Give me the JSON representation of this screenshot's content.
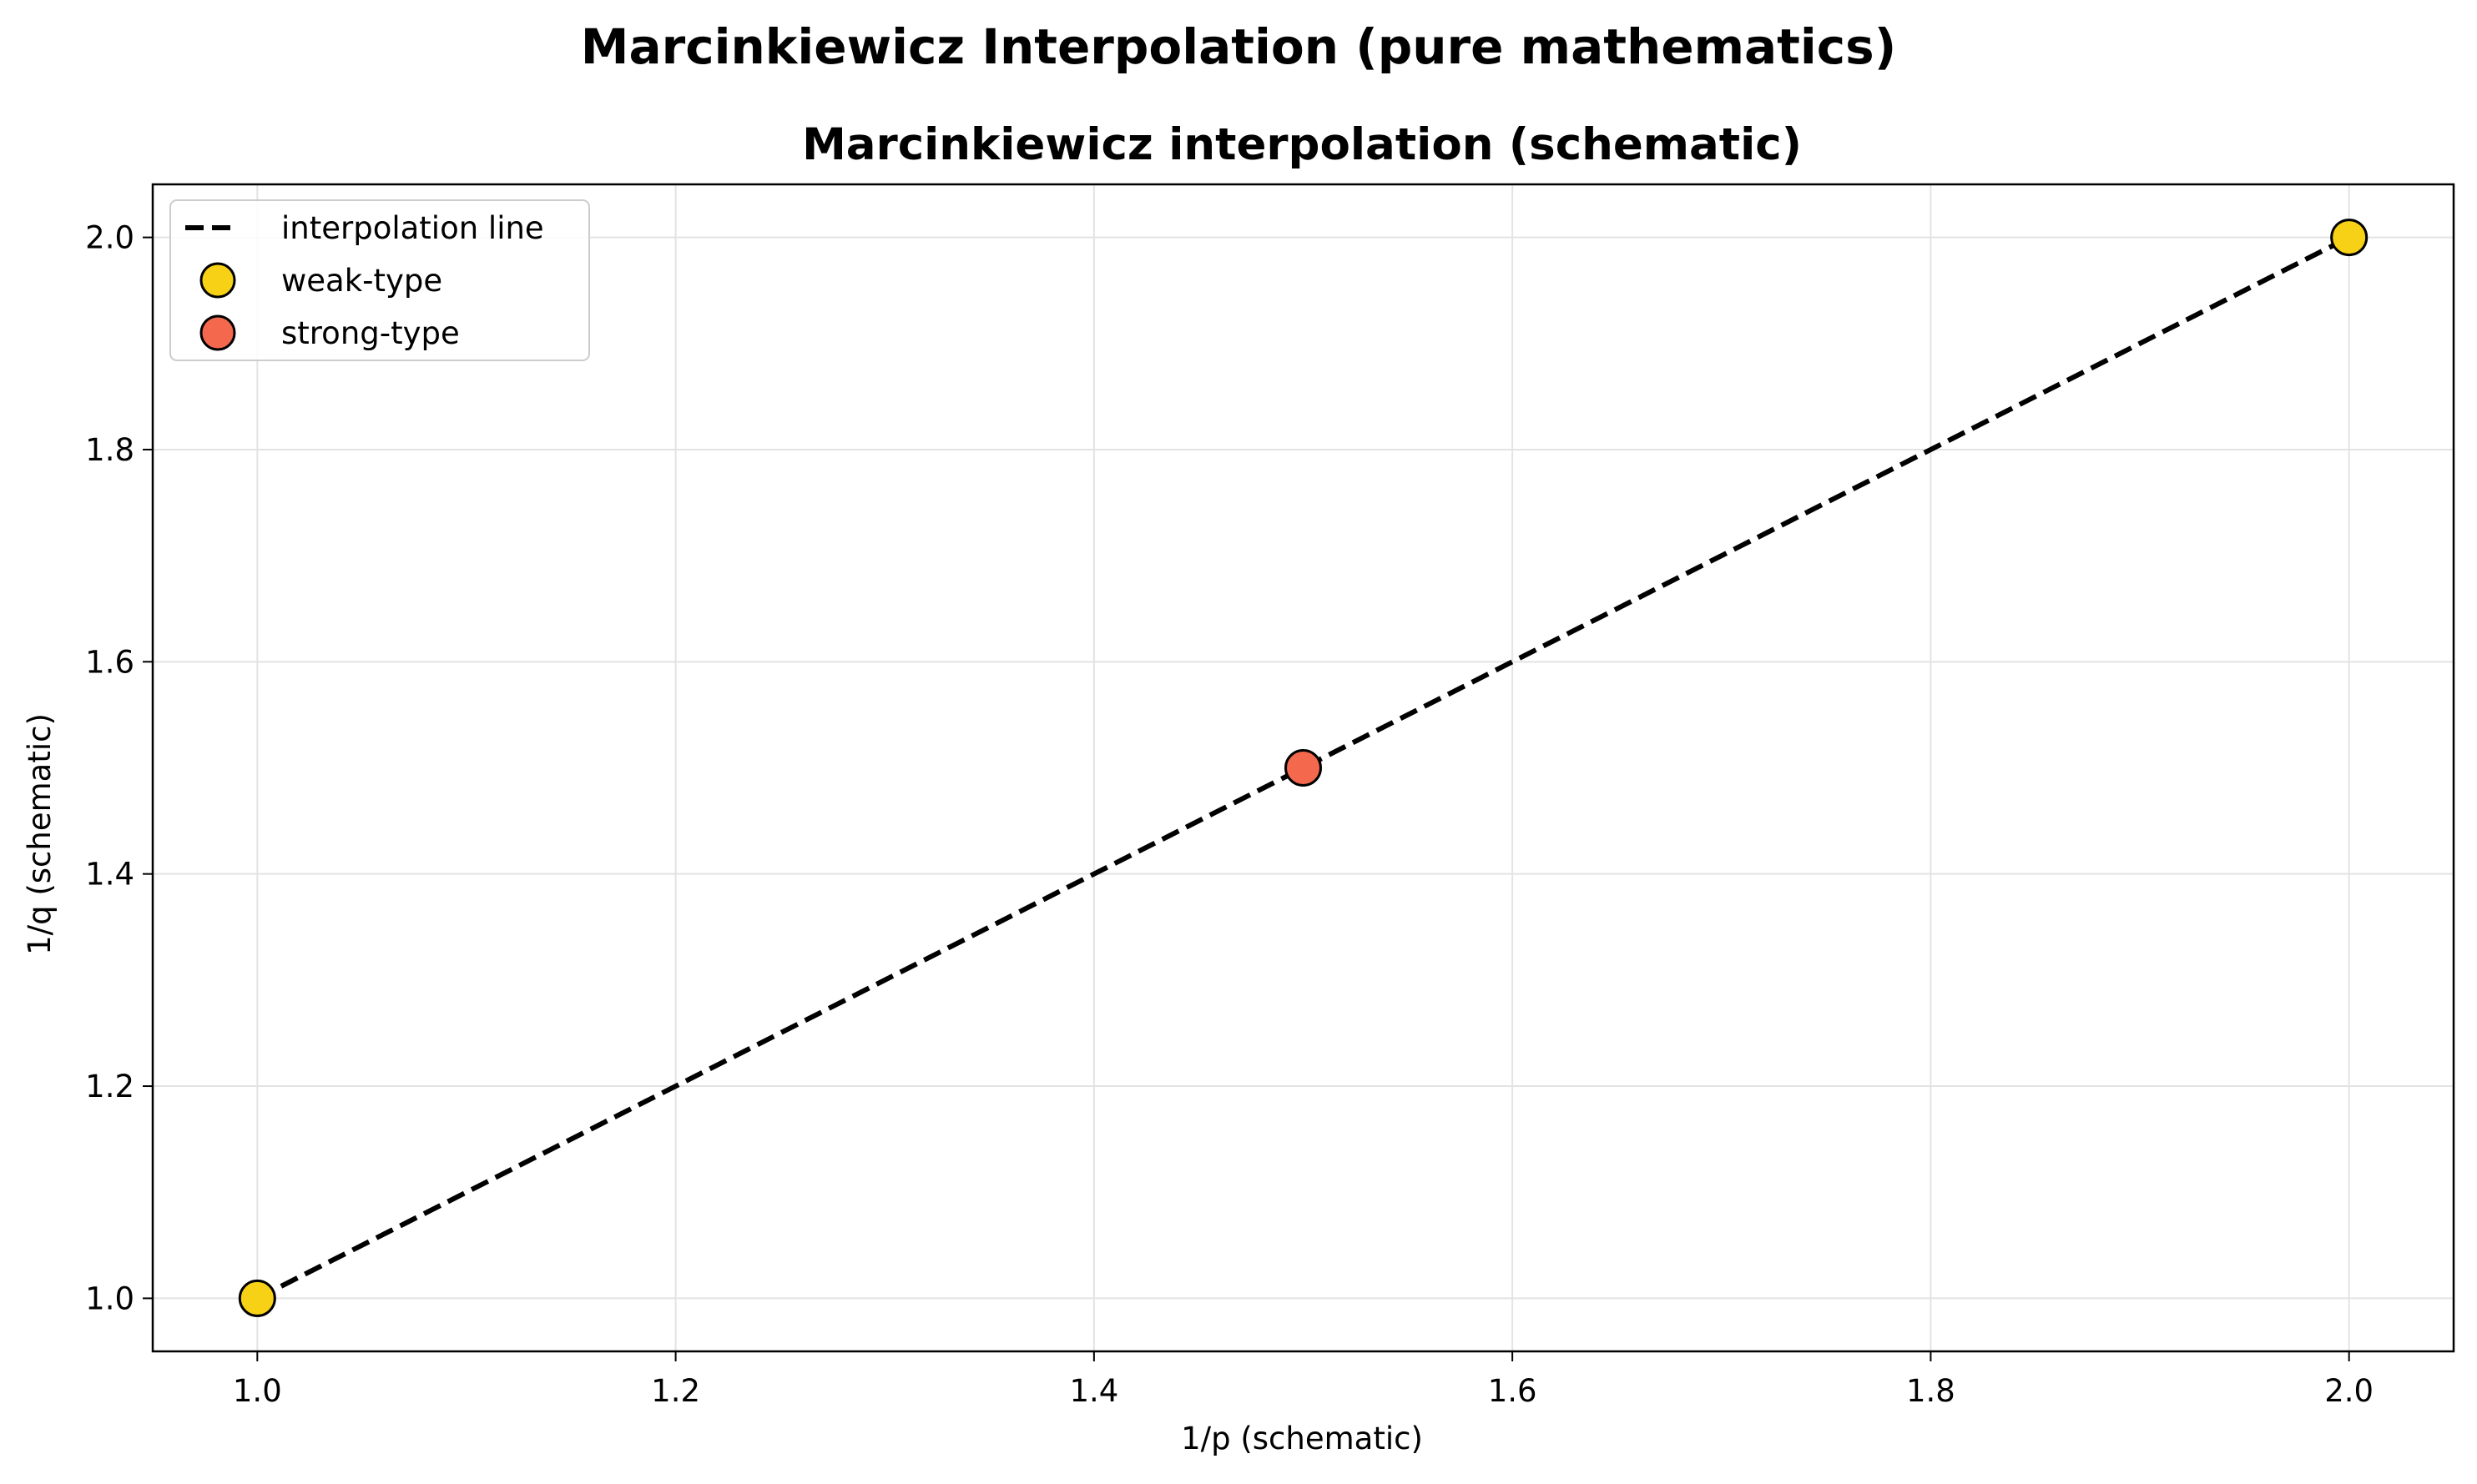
{
  "figure": {
    "suptitle": "Marcinkiewicz Interpolation (pure mathematics)"
  },
  "chart_data": {
    "type": "scatter",
    "title": "Marcinkiewicz interpolation (schematic)",
    "xlabel": "1/p (schematic)",
    "ylabel": "1/q (schematic)",
    "xlim": [
      0.95,
      2.05
    ],
    "ylim": [
      0.95,
      2.05
    ],
    "xticks": [
      1.0,
      1.2,
      1.4,
      1.6,
      1.8,
      2.0
    ],
    "xtick_labels": [
      "1.0",
      "1.2",
      "1.4",
      "1.6",
      "1.8",
      "2.0"
    ],
    "yticks": [
      1.0,
      1.2,
      1.4,
      1.6,
      1.8,
      2.0
    ],
    "ytick_labels": [
      "1.0",
      "1.2",
      "1.4",
      "1.6",
      "1.8",
      "2.0"
    ],
    "grid": true,
    "legend_position": "upper-left",
    "series": [
      {
        "name": "interpolation line",
        "kind": "line",
        "style": "dashed",
        "color": "#000000",
        "x": [
          1.0,
          2.0
        ],
        "y": [
          1.0,
          2.0
        ]
      },
      {
        "name": "weak-type",
        "kind": "scatter",
        "color": "#f7d116",
        "edgecolor": "#000000",
        "x": [
          1.0,
          2.0
        ],
        "y": [
          1.0,
          2.0
        ]
      },
      {
        "name": "strong-type",
        "kind": "scatter",
        "color": "#f4684d",
        "edgecolor": "#000000",
        "x": [
          1.5
        ],
        "y": [
          1.5
        ]
      }
    ]
  }
}
